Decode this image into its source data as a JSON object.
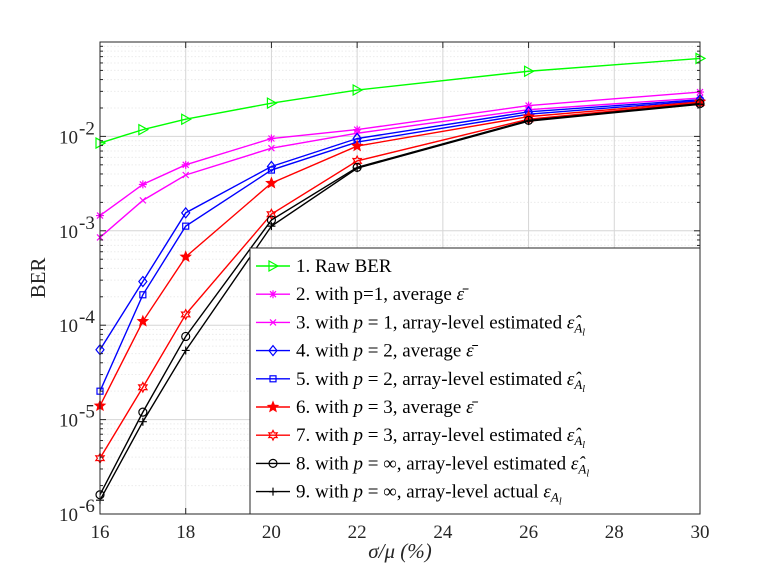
{
  "chart_data": {
    "type": "line",
    "yscale": "log",
    "xlabel": "σ/μ (%)",
    "ylabel": "BER",
    "xlim": [
      16,
      30
    ],
    "ylim": [
      1e-06,
      0.1
    ],
    "x_ticks": [
      "16",
      "18",
      "20",
      "22",
      "24",
      "26",
      "28",
      "30"
    ],
    "x_tick_values": [
      16,
      18,
      20,
      22,
      24,
      26,
      28,
      30
    ],
    "y_ticks": [
      {
        "value": 1e-06,
        "base": "10",
        "exp": "-6"
      },
      {
        "value": 1e-05,
        "base": "10",
        "exp": "-5"
      },
      {
        "value": 0.0001,
        "base": "10",
        "exp": "-4"
      },
      {
        "value": 0.001,
        "base": "10",
        "exp": "-3"
      },
      {
        "value": 0.01,
        "base": "10",
        "exp": "-2"
      }
    ],
    "grid": true,
    "legend_position": "bottom-right",
    "x": [
      16,
      17,
      18,
      20,
      22,
      26,
      30
    ],
    "series": [
      {
        "name": "1. Raw BER",
        "color": "#00ff00",
        "marker": "triangle-right",
        "legend": [
          {
            "t": "1. Raw BER"
          }
        ],
        "values": [
          0.0085,
          0.0118,
          0.0152,
          0.0225,
          0.031,
          0.049,
          0.067
        ]
      },
      {
        "name": "2. with p=1, average ε̄",
        "color": "#ff00ff",
        "marker": "asterisk",
        "legend": [
          {
            "t": "2. with p=1, average "
          },
          {
            "t": "ε̄",
            "i": true
          }
        ],
        "values": [
          0.00145,
          0.0031,
          0.005,
          0.0095,
          0.0118,
          0.0212,
          0.0295
        ]
      },
      {
        "name": "3. with p = 1, array-level estimated ε̂_Al",
        "color": "#ff00ff",
        "marker": "x",
        "legend": [
          {
            "t": "3. with "
          },
          {
            "t": "p",
            "i": true
          },
          {
            "t": " = 1, array-level estimated "
          },
          {
            "t": "ε̂",
            "i": true
          },
          {
            "t": "A",
            "i": true,
            "sub": true
          },
          {
            "t": "l",
            "i": true,
            "subsub": true
          }
        ],
        "values": [
          0.00085,
          0.0021,
          0.0039,
          0.0075,
          0.0108,
          0.0192,
          0.0255
        ]
      },
      {
        "name": "4. with p = 2, average ε̄",
        "color": "#0000ff",
        "marker": "diamond",
        "legend": [
          {
            "t": "4. with "
          },
          {
            "t": "p",
            "i": true
          },
          {
            "t": " = 2, average "
          },
          {
            "t": "ε̄",
            "i": true
          }
        ],
        "values": [
          5.5e-05,
          0.00029,
          0.00155,
          0.0048,
          0.0095,
          0.0182,
          0.0245
        ]
      },
      {
        "name": "5. with p = 2, array-level estimated ε̂_Al",
        "color": "#0000ff",
        "marker": "square",
        "legend": [
          {
            "t": "5. with "
          },
          {
            "t": "p",
            "i": true
          },
          {
            "t": " = 2, array-level estimated "
          },
          {
            "t": "ε̂",
            "i": true
          },
          {
            "t": "A",
            "i": true,
            "sub": true
          },
          {
            "t": "l",
            "i": true,
            "subsub": true
          }
        ],
        "values": [
          2e-05,
          0.00021,
          0.00112,
          0.0044,
          0.0087,
          0.0172,
          0.0238
        ]
      },
      {
        "name": "6. with p = 3, average ε̄",
        "color": "#ff0000",
        "marker": "star",
        "legend": [
          {
            "t": "6. with "
          },
          {
            "t": "p",
            "i": true
          },
          {
            "t": " = 3, average "
          },
          {
            "t": "ε̄",
            "i": true
          }
        ],
        "values": [
          1.4e-05,
          0.00011,
          0.00053,
          0.0032,
          0.0079,
          0.0162,
          0.0232
        ]
      },
      {
        "name": "7. with p = 3, array-level estimated ε̂_Al",
        "color": "#ff0000",
        "marker": "hexagram",
        "legend": [
          {
            "t": "7. with "
          },
          {
            "t": "p",
            "i": true
          },
          {
            "t": " = 3, array-level estimated "
          },
          {
            "t": "ε̂",
            "i": true
          },
          {
            "t": "A",
            "i": true,
            "sub": true
          },
          {
            "t": "l",
            "i": true,
            "subsub": true
          }
        ],
        "values": [
          3.9e-06,
          2.2e-05,
          0.00013,
          0.0015,
          0.0055,
          0.0152,
          0.0228
        ]
      },
      {
        "name": "8. with p = ∞, array-level estimated ε̂_Al",
        "color": "#000000",
        "marker": "circle",
        "legend": [
          {
            "t": "8. with "
          },
          {
            "t": "p",
            "i": true
          },
          {
            "t": " = ∞, array-level estimated "
          },
          {
            "t": "ε̂",
            "i": true
          },
          {
            "t": "A",
            "i": true,
            "sub": true
          },
          {
            "t": "l",
            "i": true,
            "subsub": true
          }
        ],
        "values": [
          1.6e-06,
          1.2e-05,
          7.6e-05,
          0.0013,
          0.0047,
          0.0148,
          0.0223
        ]
      },
      {
        "name": "9. with p = ∞, array-level actual ε_Al",
        "color": "#000000",
        "marker": "plus",
        "legend": [
          {
            "t": "9. with "
          },
          {
            "t": "p",
            "i": true
          },
          {
            "t": " = ∞, array-level actual "
          },
          {
            "t": "ε",
            "i": true
          },
          {
            "t": "A",
            "i": true,
            "sub": true
          },
          {
            "t": "l",
            "i": true,
            "subsub": true
          }
        ],
        "values": [
          1.4e-06,
          9.5e-06,
          5.4e-05,
          0.00112,
          0.0046,
          0.0145,
          0.0219
        ]
      }
    ]
  }
}
